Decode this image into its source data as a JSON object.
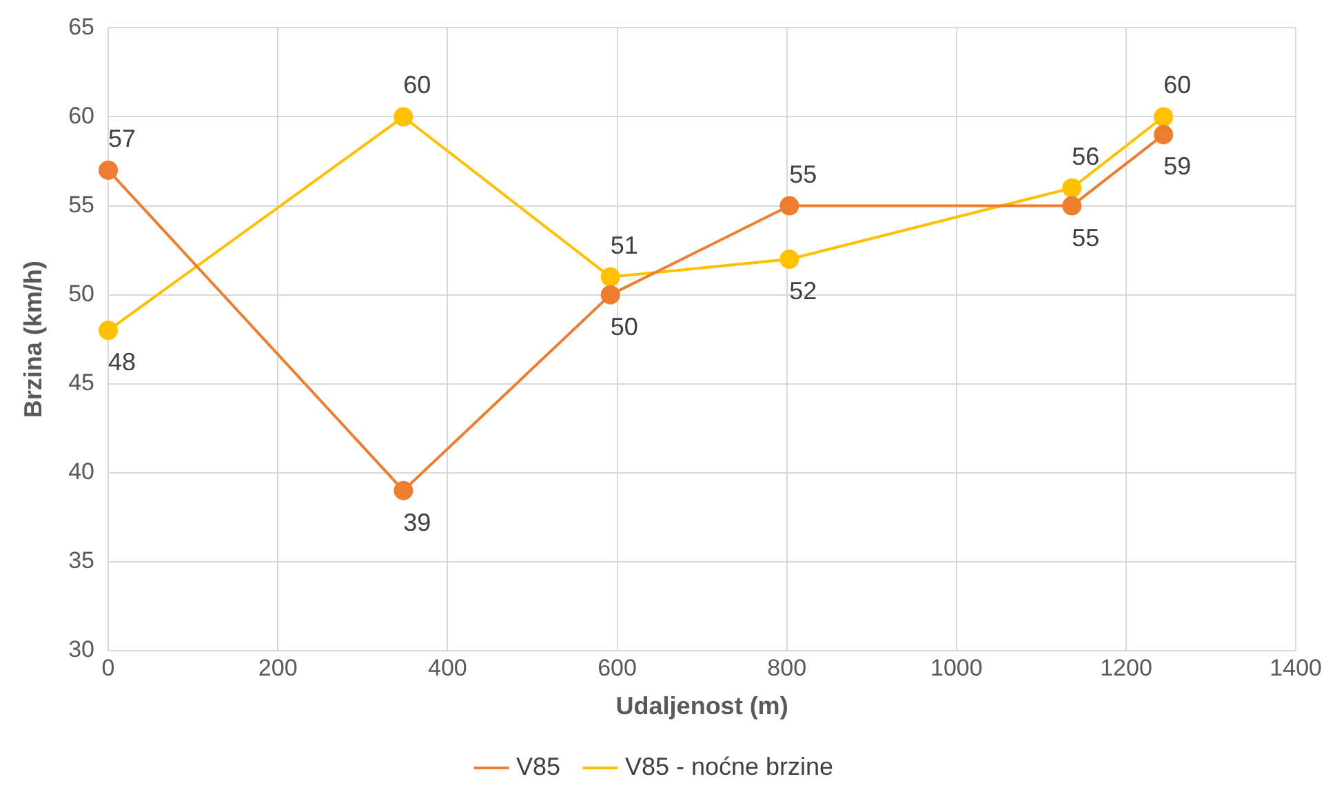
{
  "chart_data": {
    "type": "line",
    "xlabel": "Udaljenost (m)",
    "ylabel": "Brzina (km/h)",
    "x": [
      0,
      348,
      592,
      803,
      1136,
      1244
    ],
    "series": [
      {
        "name": "V85",
        "color": "#ed7d31",
        "values": [
          57,
          39,
          50,
          55,
          55,
          59
        ]
      },
      {
        "name": "V85 - noćne brzine",
        "color": "#ffc000",
        "values": [
          48,
          60,
          51,
          52,
          56,
          60
        ]
      }
    ],
    "xlim": [
      0,
      1400
    ],
    "xticks": [
      0,
      200,
      400,
      600,
      800,
      1000,
      1200,
      1400
    ],
    "ylim": [
      30,
      65
    ],
    "yticks": [
      30,
      35,
      40,
      45,
      50,
      55,
      60,
      65
    ],
    "grid": true,
    "legend": "bottom",
    "marker": "circle",
    "line_style": "solid",
    "data_labels": true
  }
}
